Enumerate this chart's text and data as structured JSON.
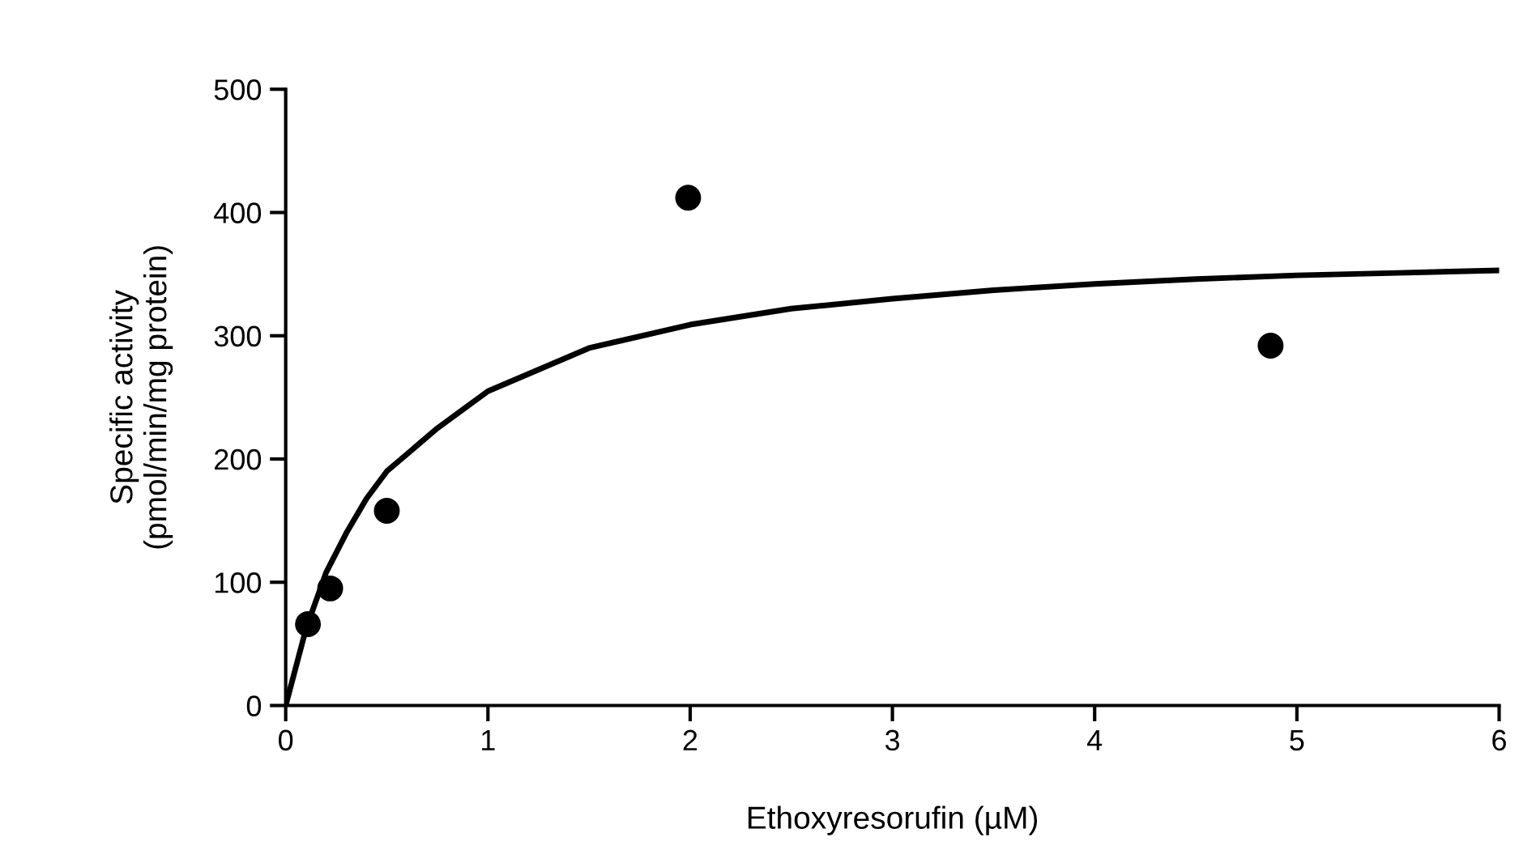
{
  "chart_data": {
    "type": "scatter",
    "xlabel": "Ethoxyresorufin (µM)",
    "ylabel": "Specific activity\n(pmol/min/mg protein)",
    "xlim": [
      0,
      6
    ],
    "ylim": [
      0,
      500
    ],
    "xticks": [
      0,
      1,
      2,
      3,
      4,
      5,
      6
    ],
    "yticks": [
      0,
      100,
      200,
      300,
      400,
      500
    ],
    "grid": false,
    "legend": false,
    "series": [
      {
        "color": "#000000",
        "marker": "circle",
        "x": [
          0.11,
          0.22,
          0.5,
          1.99,
          4.87
        ],
        "values": [
          66,
          95,
          158,
          412,
          292
        ]
      },
      {
        "type": "line",
        "color": "#000000",
        "marker": "none",
        "line_style": "solid",
        "x": [
          0,
          0.1,
          0.2,
          0.3,
          0.4,
          0.5,
          0.75,
          1,
          1.5,
          2,
          2.5,
          3,
          3.5,
          4,
          4.5,
          5,
          5.5,
          6
        ],
        "values": [
          0,
          62,
          108,
          140,
          168,
          190,
          225,
          255,
          290,
          309,
          322,
          330,
          337,
          342,
          346,
          349,
          351,
          353
        ]
      }
    ]
  }
}
